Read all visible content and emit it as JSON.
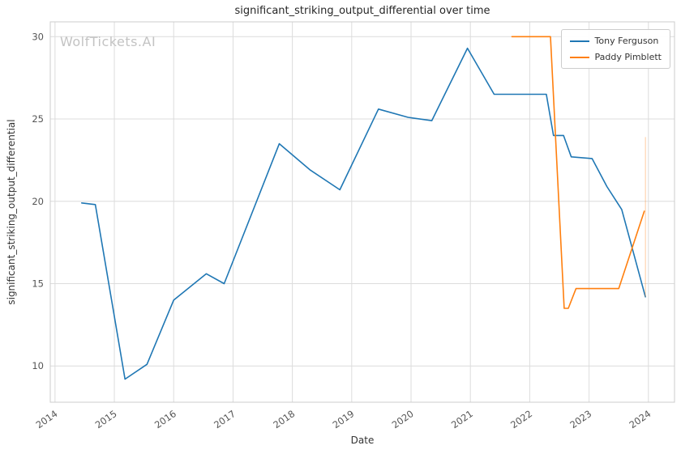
{
  "watermark": "WolfTickets.AI",
  "chart_data": {
    "type": "line",
    "title": "significant_striking_output_differential over time",
    "xlabel": "Date",
    "ylabel": "significant_striking_output_differential",
    "xlim": [
      2013.92,
      2024.44
    ],
    "ylim": [
      7.8,
      30.9
    ],
    "x_ticks": [
      2014,
      2015,
      2016,
      2017,
      2018,
      2019,
      2020,
      2021,
      2022,
      2023,
      2024
    ],
    "y_ticks": [
      10,
      15,
      20,
      25,
      30
    ],
    "grid": true,
    "legend_position": "upper right",
    "colors": {
      "grid": "#dcdcdc",
      "spine": "#cccccc",
      "tick_text": "#555555",
      "title_text": "#262626",
      "watermark": "#c3c3c3"
    },
    "series": [
      {
        "name": "Tony Ferguson",
        "color": "#1f77b4",
        "points": [
          [
            2014.45,
            19.9
          ],
          [
            2014.68,
            19.8
          ],
          [
            2015.18,
            9.2
          ],
          [
            2015.55,
            10.1
          ],
          [
            2016.0,
            14.0
          ],
          [
            2016.55,
            15.6
          ],
          [
            2016.85,
            15.0
          ],
          [
            2017.78,
            23.5
          ],
          [
            2018.3,
            21.9
          ],
          [
            2018.8,
            20.7
          ],
          [
            2019.45,
            25.6
          ],
          [
            2019.95,
            25.1
          ],
          [
            2020.35,
            24.9
          ],
          [
            2020.95,
            29.3
          ],
          [
            2021.4,
            26.5
          ],
          [
            2022.28,
            26.5
          ],
          [
            2022.4,
            24.0
          ],
          [
            2022.57,
            24.0
          ],
          [
            2022.7,
            22.7
          ],
          [
            2023.05,
            22.6
          ],
          [
            2023.3,
            20.9
          ],
          [
            2023.55,
            19.5
          ],
          [
            2023.95,
            14.2
          ]
        ]
      },
      {
        "name": "Paddy Pimblett",
        "color": "#ff7f0e",
        "points": [
          [
            2021.7,
            30.0
          ],
          [
            2022.3,
            30.0
          ],
          [
            2022.35,
            30.0
          ],
          [
            2022.58,
            13.5
          ],
          [
            2022.65,
            13.5
          ],
          [
            2022.78,
            14.7
          ],
          [
            2023.5,
            14.7
          ],
          [
            2023.93,
            19.4
          ]
        ]
      }
    ],
    "annotation_line": {
      "x": 2023.95,
      "y_from": 14.2,
      "y_to": 23.9,
      "color": "#ff7f0e",
      "opacity": 0.4
    }
  }
}
